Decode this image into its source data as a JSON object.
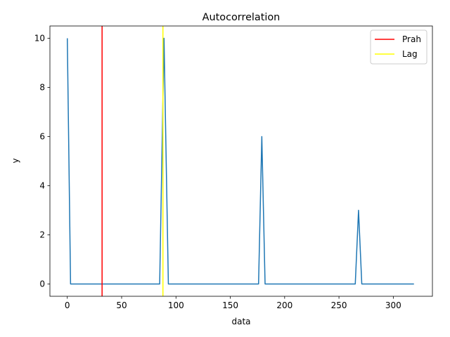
{
  "chart_data": {
    "type": "line",
    "title": "Autocorrelation",
    "xlabel": "data",
    "ylabel": "y",
    "xlim": [
      -16,
      336
    ],
    "ylim": [
      -0.5,
      10.5
    ],
    "xticks": [
      0,
      50,
      100,
      150,
      200,
      250,
      300
    ],
    "yticks": [
      0,
      2,
      4,
      6,
      8,
      10
    ],
    "grid": false,
    "legend_position": "top-right",
    "series": [
      {
        "color": "#1f77b4",
        "x": [
          0,
          3,
          85,
          89,
          93,
          176,
          179,
          182,
          265,
          268,
          271,
          319
        ],
        "y": [
          10,
          0,
          0,
          10,
          0,
          0,
          6,
          0,
          0,
          3,
          0,
          0
        ]
      }
    ],
    "vlines": [
      {
        "name": "Prah",
        "x": 32,
        "color": "#ff0000"
      },
      {
        "name": "Lag",
        "x": 88,
        "color": "#ffff00"
      }
    ],
    "legend": [
      {
        "label": "Prah",
        "color": "#ff0000"
      },
      {
        "label": "Lag",
        "color": "#ffff00"
      }
    ]
  }
}
